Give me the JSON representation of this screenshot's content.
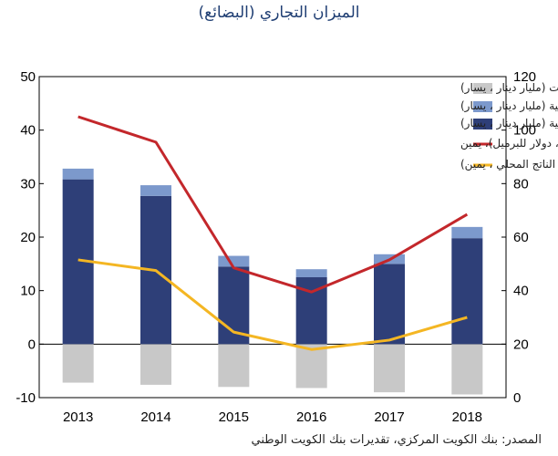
{
  "chart_data": {
    "type": "bar",
    "title": "الميزان التجاري (البضائع)",
    "source": "المصدر: بنك الكويت المركزي، تقديرات بنك الكويت الوطني",
    "categories": [
      "2013",
      "2014",
      "2015",
      "2016",
      "2017",
      "2018"
    ],
    "left_axis": {
      "ylim": [
        -10,
        50
      ],
      "ticks": [
        "-10",
        "0",
        "10",
        "20",
        "30",
        "40",
        "50"
      ]
    },
    "right_axis": {
      "ylim": [
        0,
        120
      ],
      "ticks": [
        "0",
        "20",
        "40",
        "60",
        "80",
        "100",
        "120"
      ]
    },
    "grid": false,
    "legend_placement": "top-right",
    "series": [
      {
        "name": "الواردات (مليار دينار ، يسار)",
        "kind": "bar",
        "axis": "left",
        "color": "#c8c8c8",
        "values": [
          -7.2,
          -7.6,
          -8.0,
          -8.2,
          -9.0,
          -9.4
        ]
      },
      {
        "name": "الصادرات غير النفطية (مليار دينار ، يسار)",
        "kind": "bar",
        "axis": "left",
        "color": "#7c99cc",
        "values": [
          2.0,
          2.0,
          2.0,
          1.5,
          1.8,
          2.1
        ]
      },
      {
        "name": "الصادرات النفطية (مليار دينار ، يسار)",
        "kind": "bar",
        "axis": "left",
        "color": "#2e3f78",
        "values": [
          30.8,
          27.7,
          14.5,
          12.5,
          15.0,
          19.8
        ]
      },
      {
        "name": "سعر تصدير النفط (تصدير خام الكويت، دولار للبرميل)، يمين",
        "kind": "line",
        "axis": "right",
        "color": "#c3272b",
        "values": [
          105,
          95.5,
          48.5,
          39.5,
          51.5,
          68.5
        ]
      },
      {
        "name": "الميزان التجاري (٪ من إجمالي الناتج المحلي ، يمين)",
        "kind": "line",
        "axis": "right",
        "color": "#f4b623",
        "values": [
          51.5,
          47.5,
          24.5,
          18.0,
          21.5,
          30.0
        ]
      }
    ]
  }
}
